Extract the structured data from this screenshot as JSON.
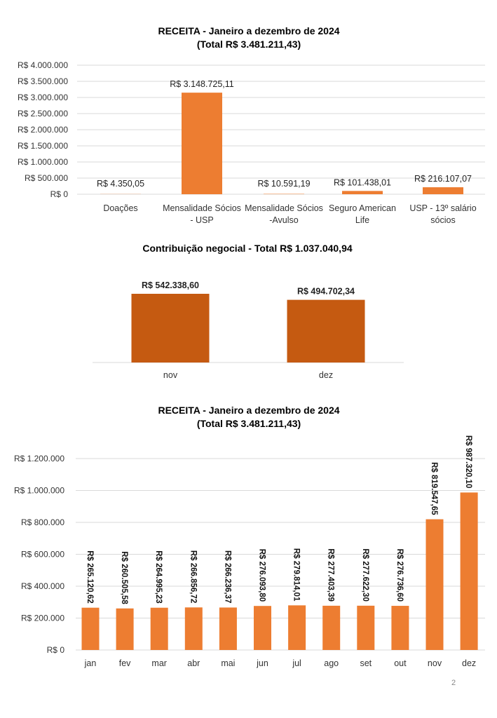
{
  "chart_data": [
    {
      "type": "bar",
      "title": "RECEITA - Janeiro a dezembro de 2024",
      "subtitle": "(Total R$ 3.481.211,43)",
      "categories": [
        [
          "Doações"
        ],
        [
          "Mensalidade Sócios",
          "- USP"
        ],
        [
          "Mensalidade Sócios",
          "-Avulso"
        ],
        [
          "Seguro American",
          "Life"
        ],
        [
          "USP - 13º salário",
          "sócios"
        ]
      ],
      "values": [
        4350.05,
        3148725.11,
        10591.19,
        101438.01,
        216107.07
      ],
      "data_labels": [
        "R$ 4.350,05",
        "R$ 3.148.725,11",
        "R$ 10.591,19",
        "R$ 101.438,01",
        "R$ 216.107,07"
      ],
      "yticks": [
        "R$ 0",
        "R$ 500.000",
        "R$ 1.000.000",
        "R$ 1.500.000",
        "R$ 2.000.000",
        "R$ 2.500.000",
        "R$ 3.000.000",
        "R$ 3.500.000",
        "R$ 4.000.000"
      ],
      "ylim": [
        0,
        4000000
      ],
      "grid": true,
      "color": "#ed7d31"
    },
    {
      "type": "bar",
      "title": "Contribuição negocial - Total R$ 1.037.040,94",
      "categories": [
        "nov",
        "dez"
      ],
      "values": [
        542338.6,
        494702.34
      ],
      "data_labels": [
        "R$ 542.338,60",
        "R$ 494.702,34"
      ],
      "ylim": [
        0,
        600000
      ],
      "grid": false,
      "color": "#c55a11"
    },
    {
      "type": "bar",
      "title": "RECEITA - Janeiro a dezembro de 2024",
      "subtitle": "(Total R$ 3.481.211,43)",
      "categories": [
        "jan",
        "fev",
        "mar",
        "abr",
        "mai",
        "jun",
        "jul",
        "ago",
        "set",
        "out",
        "nov",
        "dez"
      ],
      "values": [
        265120.62,
        260505.58,
        264995.23,
        266856.72,
        266236.37,
        276093.8,
        279814.01,
        277403.39,
        277622.3,
        276736.6,
        819547.65,
        987320.1
      ],
      "data_labels": [
        "R$ 265.120,62",
        "R$ 260.505,58",
        "R$ 264.995,23",
        "R$ 266.856,72",
        "R$ 266.236,37",
        "R$ 276.093,80",
        "R$ 279.814,01",
        "R$ 277.403,39",
        "R$ 277.622,30",
        "R$ 276.736,60",
        "R$ 819.547,65",
        "R$ 987.320,10"
      ],
      "yticks": [
        "R$ 0",
        "R$ 200.000",
        "R$ 400.000",
        "R$ 600.000",
        "R$ 800.000",
        "R$ 1.000.000",
        "R$ 1.200.000"
      ],
      "ylim": [
        0,
        1200000
      ],
      "grid": true,
      "color": "#ed7d31"
    }
  ],
  "page_number": "2"
}
